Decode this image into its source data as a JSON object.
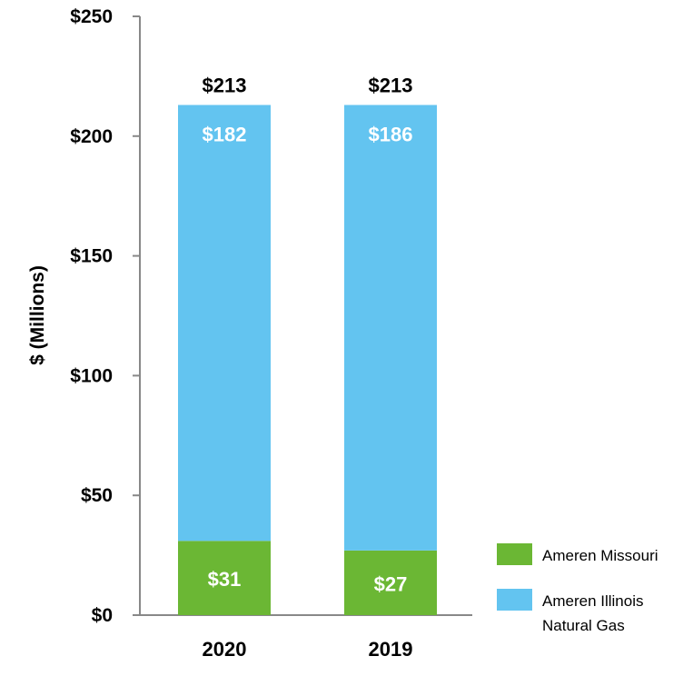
{
  "chart_data": {
    "type": "bar",
    "stacked": true,
    "categories": [
      "2020",
      "2019"
    ],
    "series": [
      {
        "name": "Ameren Missouri",
        "values": [
          31,
          27
        ],
        "color": "#6bb734"
      },
      {
        "name": "Ameren Illinois Natural Gas",
        "values": [
          182,
          186
        ],
        "color": "#63c4f0"
      }
    ],
    "totals": [
      213,
      213
    ],
    "data_labels": {
      "totals": [
        "$213",
        "$213"
      ],
      "Ameren Missouri": [
        "$31",
        "$27"
      ],
      "Ameren Illinois Natural Gas": [
        "$182",
        "$186"
      ]
    },
    "ylabel": "$ (Millions)",
    "ylim": [
      0,
      250
    ],
    "yticks": [
      0,
      50,
      100,
      150,
      200,
      250
    ],
    "ytick_labels": [
      "$0",
      "$50",
      "$100",
      "$150",
      "$200",
      "$250"
    ],
    "grid": false,
    "legend": {
      "placement": "bottom-right",
      "lines": [
        [
          "Ameren Missouri"
        ],
        [
          "Ameren Illinois",
          "Natural Gas"
        ]
      ]
    }
  }
}
